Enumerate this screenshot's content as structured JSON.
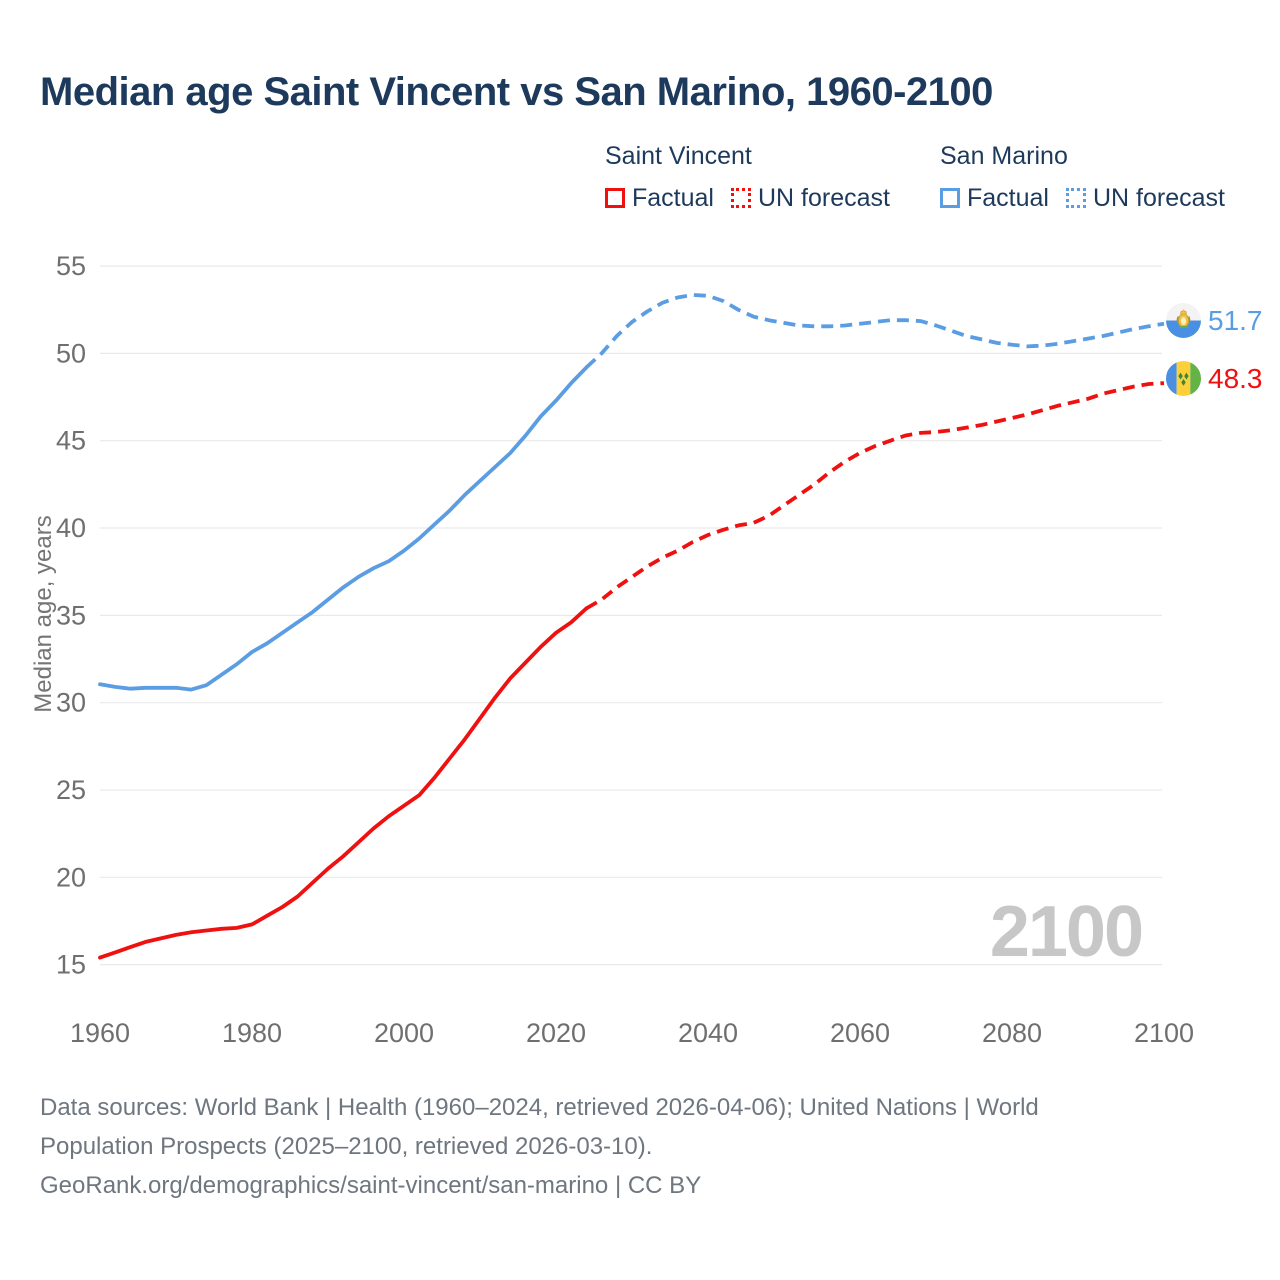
{
  "title": "Median age Saint Vincent vs San Marino, 1960-2100",
  "legend": {
    "groups": [
      {
        "name": "Saint Vincent",
        "color": "#ef1010",
        "items": [
          {
            "label": "Factual",
            "style": "solid"
          },
          {
            "label": "UN forecast",
            "style": "dashed"
          }
        ]
      },
      {
        "name": "San Marino",
        "color": "#5b9de2",
        "items": [
          {
            "label": "Factual",
            "style": "solid"
          },
          {
            "label": "UN forecast",
            "style": "dashed"
          }
        ]
      }
    ]
  },
  "watermark": "2100",
  "end_labels": [
    {
      "series": "San Marino",
      "value": "51.7",
      "color": "#5b9de2",
      "flag": "san-marino-flag"
    },
    {
      "series": "Saint Vincent",
      "value": "48.3",
      "color": "#ef1010",
      "flag": "saint-vincent-flag"
    }
  ],
  "footer": {
    "lines": [
      "Data sources: World Bank | Health (1960–2024, retrieved 2026-04-06); United Nations | World",
      "Population Prospects (2025–2100, retrieved 2026-03-10).",
      "GeoRank.org/demographics/saint-vincent/san-marino | CC BY"
    ]
  },
  "chart_data": {
    "type": "line",
    "title": "Median age Saint Vincent vs San Marino, 1960-2100",
    "xlabel": "",
    "ylabel": "Median age, years",
    "xlim": [
      1959,
      2100
    ],
    "ylim": [
      15,
      55
    ],
    "x_ticks": [
      1960,
      1980,
      2000,
      2020,
      2040,
      2060,
      2080,
      2100
    ],
    "y_ticks": [
      15,
      20,
      25,
      30,
      35,
      40,
      45,
      50,
      55
    ],
    "grid": "horizontal",
    "legend_position": "top-right",
    "series": [
      {
        "name": "San Marino",
        "color": "#5b9de2",
        "end_value": 51.7,
        "factual": {
          "years": [
            1960,
            1962,
            1964,
            1966,
            1968,
            1970,
            1972,
            1974,
            1976,
            1978,
            1980,
            1982,
            1984,
            1986,
            1988,
            1990,
            1992,
            1994,
            1996,
            1998,
            2000,
            2002,
            2004,
            2006,
            2008,
            2010,
            2012,
            2014,
            2016,
            2018,
            2020,
            2022,
            2024
          ],
          "values": [
            31.05,
            30.9,
            30.8,
            30.85,
            30.85,
            30.85,
            30.75,
            31.0,
            31.6,
            32.2,
            32.9,
            33.4,
            34.0,
            34.6,
            35.2,
            35.9,
            36.6,
            37.2,
            37.7,
            38.1,
            38.7,
            39.4,
            40.2,
            41.0,
            41.9,
            42.7,
            43.5,
            44.3,
            45.3,
            46.4,
            47.3,
            48.3,
            49.2
          ]
        },
        "forecast": {
          "years": [
            2024,
            2026,
            2028,
            2030,
            2032,
            2034,
            2036,
            2038,
            2040,
            2042,
            2044,
            2046,
            2048,
            2050,
            2052,
            2054,
            2056,
            2058,
            2060,
            2062,
            2064,
            2066,
            2068,
            2070,
            2072,
            2074,
            2076,
            2078,
            2080,
            2082,
            2084,
            2086,
            2088,
            2090,
            2092,
            2094,
            2096,
            2098,
            2100
          ],
          "values": [
            49.2,
            50.0,
            51.0,
            51.8,
            52.4,
            52.9,
            53.2,
            53.35,
            53.3,
            53.0,
            52.5,
            52.1,
            51.9,
            51.75,
            51.6,
            51.55,
            51.55,
            51.6,
            51.7,
            51.8,
            51.9,
            51.9,
            51.85,
            51.6,
            51.3,
            51.0,
            50.8,
            50.6,
            50.5,
            50.4,
            50.45,
            50.55,
            50.7,
            50.85,
            51.0,
            51.2,
            51.4,
            51.55,
            51.7
          ]
        }
      },
      {
        "name": "Saint Vincent",
        "color": "#ef1010",
        "end_value": 48.3,
        "factual": {
          "years": [
            1960,
            1962,
            1964,
            1966,
            1968,
            1970,
            1972,
            1974,
            1976,
            1978,
            1980,
            1982,
            1984,
            1986,
            1988,
            1990,
            1992,
            1994,
            1996,
            1998,
            2000,
            2002,
            2004,
            2006,
            2008,
            2010,
            2012,
            2014,
            2016,
            2018,
            2020,
            2022,
            2024
          ],
          "values": [
            15.4,
            15.7,
            16.0,
            16.3,
            16.5,
            16.7,
            16.85,
            16.95,
            17.05,
            17.1,
            17.3,
            17.8,
            18.3,
            18.9,
            19.7,
            20.5,
            21.2,
            22.0,
            22.8,
            23.5,
            24.1,
            24.7,
            25.7,
            26.8,
            27.9,
            29.1,
            30.3,
            31.4,
            32.3,
            33.2,
            34.0,
            34.6,
            35.4
          ]
        },
        "forecast": {
          "years": [
            2024,
            2026,
            2028,
            2030,
            2032,
            2034,
            2036,
            2038,
            2040,
            2042,
            2044,
            2046,
            2048,
            2050,
            2052,
            2054,
            2056,
            2058,
            2060,
            2062,
            2064,
            2066,
            2068,
            2070,
            2072,
            2074,
            2076,
            2078,
            2080,
            2082,
            2084,
            2086,
            2088,
            2090,
            2092,
            2094,
            2096,
            2098,
            2100
          ],
          "values": [
            35.4,
            35.9,
            36.6,
            37.2,
            37.8,
            38.3,
            38.7,
            39.2,
            39.6,
            39.9,
            40.15,
            40.3,
            40.7,
            41.3,
            41.9,
            42.5,
            43.2,
            43.8,
            44.3,
            44.7,
            45.0,
            45.3,
            45.45,
            45.5,
            45.6,
            45.75,
            45.9,
            46.1,
            46.3,
            46.5,
            46.75,
            47.0,
            47.2,
            47.4,
            47.7,
            47.9,
            48.1,
            48.25,
            48.3
          ]
        }
      }
    ]
  }
}
